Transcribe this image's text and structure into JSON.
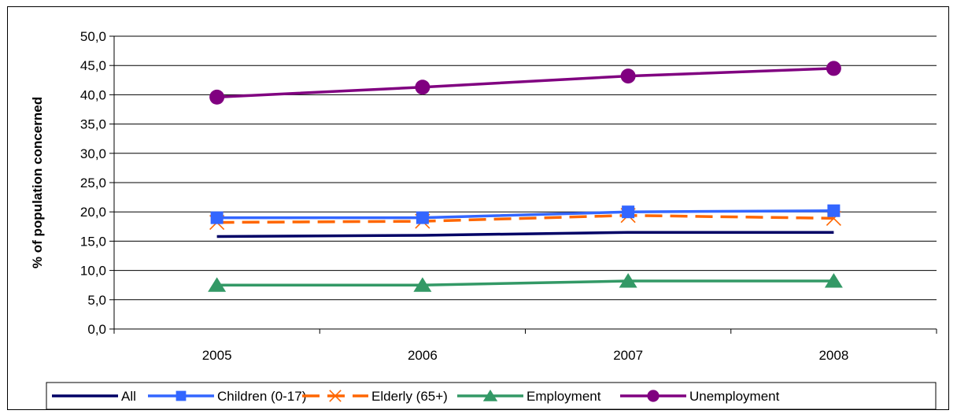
{
  "chart_data": {
    "type": "line",
    "title": "",
    "xlabel": "",
    "ylabel": "% of population concerned",
    "categories": [
      "2005",
      "2006",
      "2007",
      "2008"
    ],
    "ylim": [
      0,
      50
    ],
    "yticks": [
      "0,0",
      "5,0",
      "10,0",
      "15,0",
      "20,0",
      "25,0",
      "30,0",
      "35,0",
      "40,0",
      "45,0",
      "50,0"
    ],
    "grid": true,
    "legend_position": "bottom",
    "series": [
      {
        "name": "All",
        "values": [
          15.8,
          16.0,
          16.5,
          16.5
        ],
        "color": "#000066",
        "marker": "none",
        "dash": false
      },
      {
        "name": "Children (0-17)",
        "values": [
          19.0,
          19.0,
          20.0,
          20.2
        ],
        "color": "#3366FF",
        "marker": "square",
        "dash": false
      },
      {
        "name": "Elderly (65+)",
        "values": [
          18.2,
          18.4,
          19.4,
          18.9
        ],
        "color": "#FF6600",
        "marker": "x",
        "dash": true
      },
      {
        "name": "Employment",
        "values": [
          7.5,
          7.5,
          8.2,
          8.2
        ],
        "color": "#339966",
        "marker": "triangle",
        "dash": false
      },
      {
        "name": "Unemployment",
        "values": [
          39.6,
          41.3,
          43.2,
          44.5
        ],
        "color": "#800080",
        "marker": "circle",
        "dash": false
      }
    ]
  }
}
